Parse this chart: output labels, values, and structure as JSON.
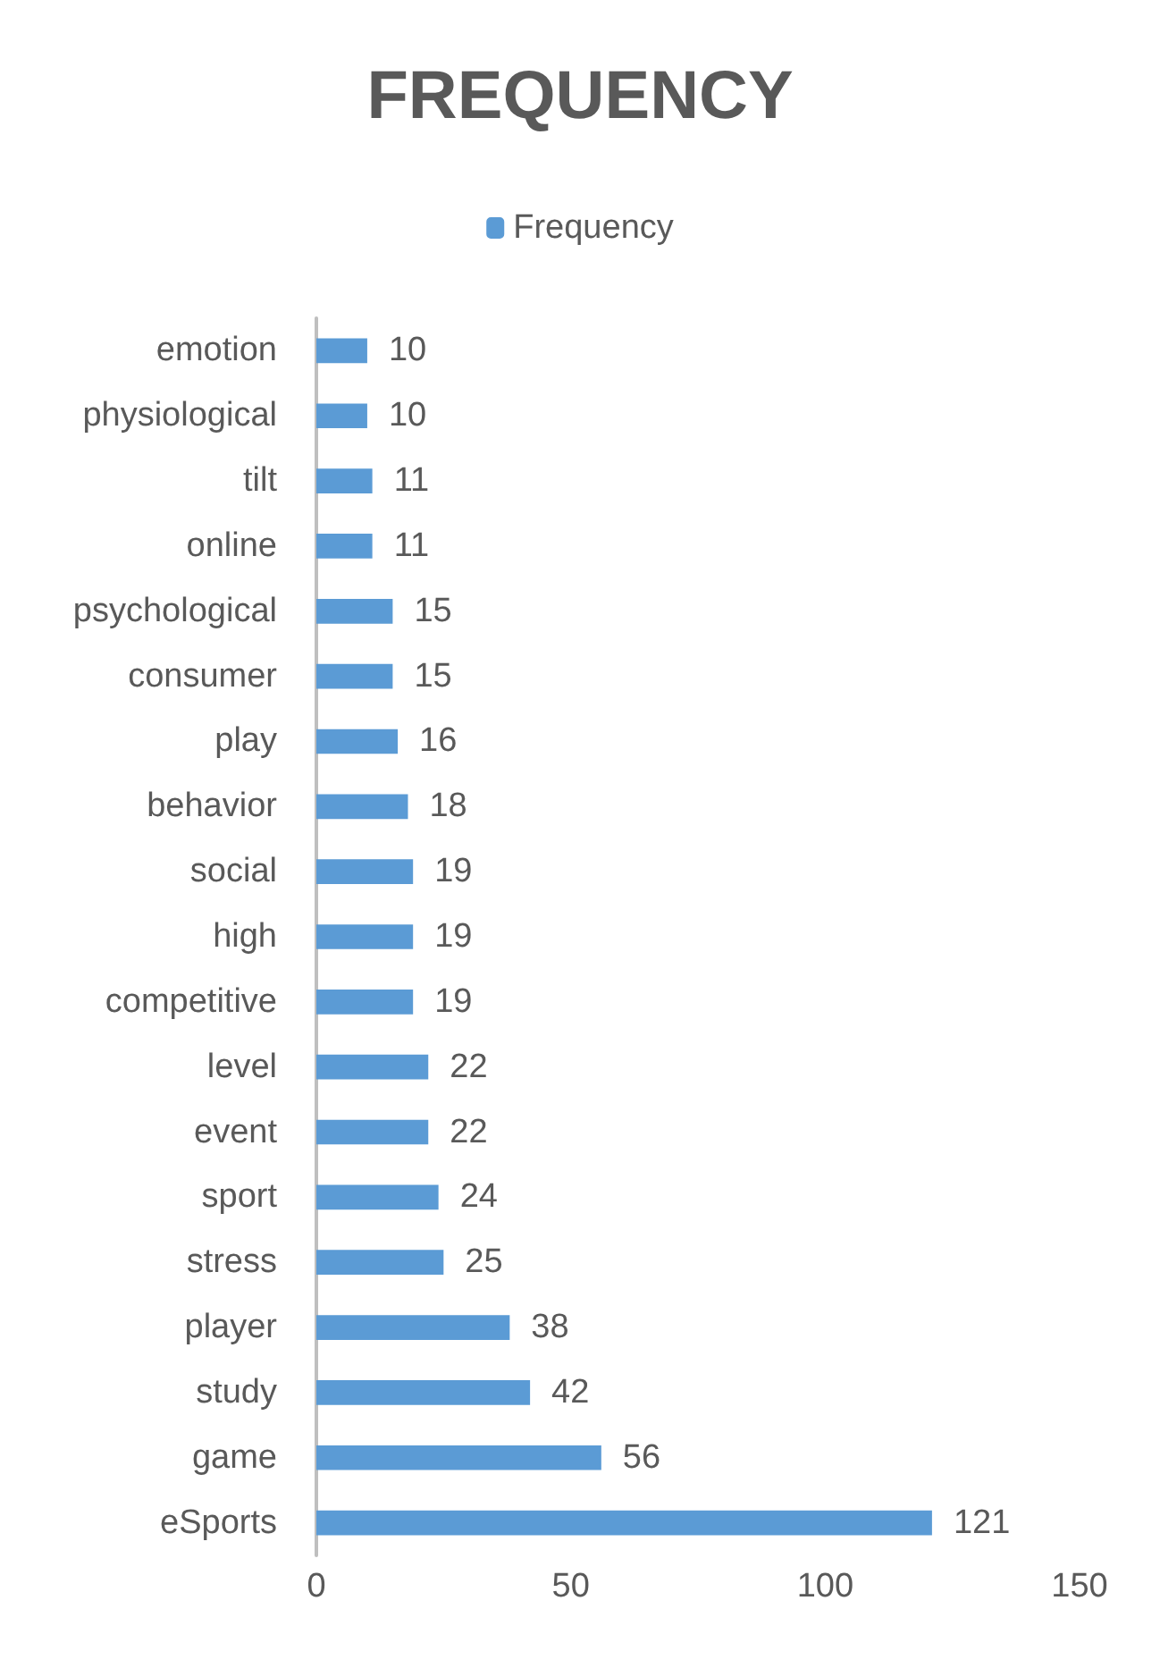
{
  "chart_data": {
    "type": "bar",
    "orientation": "horizontal",
    "title": "FREQUENCY",
    "categories": [
      "emotion",
      "physiological",
      "tilt",
      "online",
      "psychological",
      "consumer",
      "play",
      "behavior",
      "social",
      "high",
      "competitive",
      "level",
      "event",
      "sport",
      "stress",
      "player",
      "study",
      "game",
      "eSports"
    ],
    "series": [
      {
        "name": "Frequency",
        "color": "#5b9bd5",
        "values": [
          10,
          10,
          11,
          11,
          15,
          15,
          16,
          18,
          19,
          19,
          19,
          22,
          22,
          24,
          25,
          38,
          42,
          56,
          121
        ]
      }
    ],
    "xlim": [
      0,
      150
    ],
    "xticks": [
      0,
      50,
      100,
      150
    ],
    "grid": false,
    "legend": "top",
    "data_labels": true
  }
}
